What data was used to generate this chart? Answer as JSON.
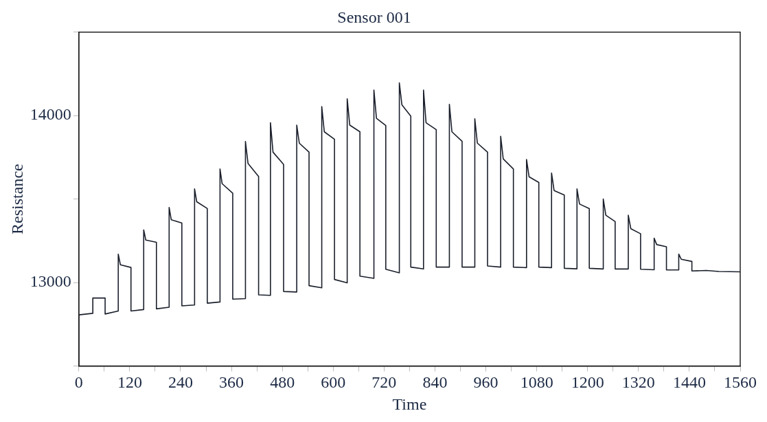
{
  "chart_data": {
    "type": "line",
    "title": "Sensor 001",
    "xlabel": "Time",
    "ylabel": "Resistance",
    "xlim": [
      0,
      1560
    ],
    "ylim": [
      12500,
      14500
    ],
    "xticks": [
      0,
      {
        "value": 60,
        "label": null
      },
      120,
      {
        "value": 180,
        "label": null
      },
      240,
      {
        "value": 300,
        "label": null
      },
      360,
      {
        "value": 420,
        "label": null
      },
      480,
      {
        "value": 540,
        "label": null
      },
      600,
      {
        "value": 660,
        "label": null
      },
      720,
      {
        "value": 780,
        "label": null
      },
      840,
      {
        "value": 900,
        "label": null
      },
      960,
      {
        "value": 1020,
        "label": null
      },
      1080,
      {
        "value": 1140,
        "label": null
      },
      1200,
      {
        "value": 1260,
        "label": null
      },
      1320,
      {
        "value": 1380,
        "label": null
      },
      1440,
      {
        "value": 1500,
        "label": null
      },
      1560
    ],
    "yticks": [
      {
        "value": 12500,
        "label": null
      },
      13000,
      {
        "value": 13500,
        "label": null
      },
      14000,
      {
        "value": 14500,
        "label": null
      }
    ],
    "grid": false,
    "legend": false,
    "marker": "none",
    "line_style": "solid",
    "series": [
      {
        "color": "#1a1f2b",
        "x": [
          0,
          0,
          33,
          33,
          62,
          62,
          93,
          93,
          98,
          123,
          123,
          153,
          153,
          158,
          183,
          183,
          213,
          213,
          218,
          243,
          243,
          273,
          273,
          278,
          303,
          303,
          333,
          333,
          338,
          363,
          363,
          393,
          393,
          399,
          424,
          424,
          452,
          452,
          458,
          483,
          483,
          514,
          514,
          520,
          543,
          543,
          573,
          573,
          579,
          603,
          603,
          633,
          633,
          639,
          663,
          663,
          696,
          696,
          702,
          724,
          724,
          756,
          756,
          762,
          783,
          783,
          813,
          813,
          819,
          843,
          843,
          874,
          874,
          880,
          904,
          904,
          934,
          934,
          940,
          964,
          964,
          995,
          995,
          1001,
          1025,
          1025,
          1056,
          1056,
          1062,
          1085,
          1085,
          1115,
          1115,
          1121,
          1145,
          1145,
          1175,
          1175,
          1181,
          1204,
          1204,
          1237,
          1237,
          1243,
          1265,
          1265,
          1296,
          1296,
          1302,
          1325,
          1325,
          1357,
          1357,
          1363,
          1386,
          1386,
          1415,
          1415,
          1421,
          1446,
          1446,
          1480,
          1510,
          1560
        ],
        "values": [
          12500,
          12806,
          12815,
          12907,
          12907,
          12811,
          12829,
          13170,
          13106,
          13090,
          12829,
          12838,
          13315,
          13254,
          13241,
          12842,
          12852,
          13450,
          13376,
          13356,
          12860,
          12865,
          13561,
          13484,
          13443,
          12876,
          12883,
          13680,
          13592,
          13535,
          12900,
          12903,
          13845,
          13714,
          13635,
          12926,
          12923,
          13957,
          13781,
          13707,
          12946,
          12943,
          13943,
          13835,
          13781,
          12981,
          12968,
          14054,
          13903,
          13858,
          13018,
          12998,
          14101,
          13943,
          13903,
          13038,
          13025,
          14153,
          13984,
          13941,
          13079,
          13058,
          14196,
          14065,
          13997,
          13092,
          13081,
          14153,
          13957,
          13916,
          13092,
          13092,
          14068,
          13903,
          13846,
          13092,
          13092,
          13981,
          13835,
          13781,
          13099,
          13092,
          13876,
          13741,
          13680,
          13092,
          13089,
          13737,
          13633,
          13599,
          13092,
          13089,
          13656,
          13551,
          13524,
          13085,
          13082,
          13561,
          13470,
          13443,
          13085,
          13081,
          13500,
          13403,
          13365,
          13081,
          13081,
          13403,
          13322,
          13292,
          13079,
          13076,
          13265,
          13227,
          13214,
          13075,
          13075,
          13170,
          13139,
          13126,
          13069,
          13072,
          13066,
          13064
        ]
      }
    ]
  }
}
